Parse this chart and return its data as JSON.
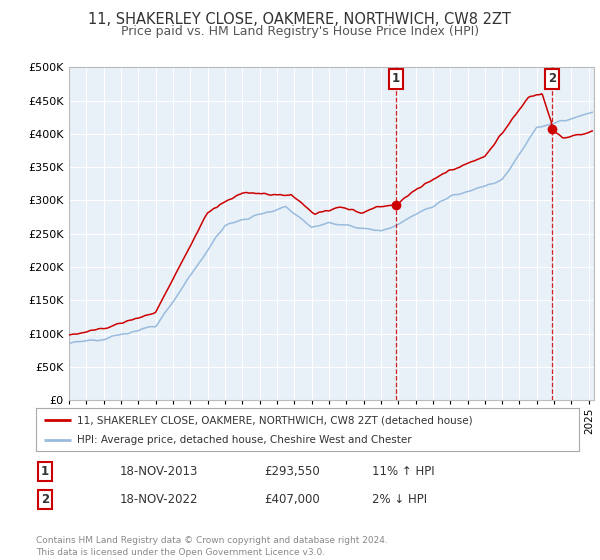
{
  "title": "11, SHAKERLEY CLOSE, OAKMERE, NORTHWICH, CW8 2ZT",
  "subtitle": "Price paid vs. HM Land Registry's House Price Index (HPI)",
  "ylim": [
    0,
    500000
  ],
  "yticks": [
    0,
    50000,
    100000,
    150000,
    200000,
    250000,
    300000,
    350000,
    400000,
    450000,
    500000
  ],
  "xlim_start": 1995.0,
  "xlim_end": 2025.3,
  "background_color": "#ffffff",
  "chart_bg_color": "#e8f0f8",
  "grid_color": "#ffffff",
  "sale1_x": 2013.88,
  "sale1_y": 293550,
  "sale2_x": 2022.88,
  "sale2_y": 407000,
  "legend_label_red": "11, SHAKERLEY CLOSE, OAKMERE, NORTHWICH, CW8 2ZT (detached house)",
  "legend_label_blue": "HPI: Average price, detached house, Cheshire West and Chester",
  "table_row1": [
    "1",
    "18-NOV-2013",
    "£293,550",
    "11% ↑ HPI"
  ],
  "table_row2": [
    "2",
    "18-NOV-2022",
    "£407,000",
    "2% ↓ HPI"
  ],
  "footer": "Contains HM Land Registry data © Crown copyright and database right 2024.\nThis data is licensed under the Open Government Licence v3.0.",
  "red_color": "#cc0000",
  "blue_color": "#99bbdd",
  "title_fontsize": 10.5,
  "subtitle_fontsize": 9
}
